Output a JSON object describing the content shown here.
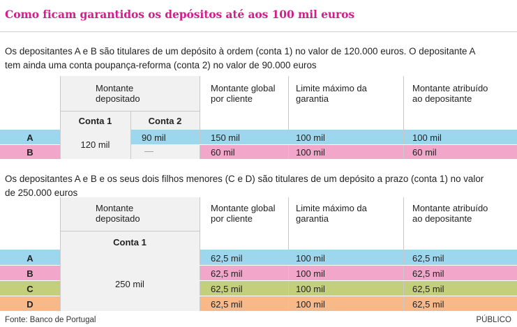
{
  "title": "Como ficam garantidos os depósitos até aos 100 mil euros",
  "scenario1": {
    "intro_line1": "Os depositantes A e B são titulares de um depósito à ordem (conta 1) no valor de 120.000 euros. O depositante A",
    "intro_line2": "tem ainda uma conta poupança-reforma (conta 2) no valor de 90.000 euros",
    "headers": {
      "montante_depositado": "Montante depositado",
      "conta1": "Conta 1",
      "conta2": "Conta 2",
      "global": "Montante global por cliente",
      "limite": "Limite máximo da garantia",
      "atribuido": "Montante atribuído ao depositante"
    },
    "conta1_shared": "120 mil",
    "rows": [
      {
        "label": "A",
        "conta2": "90 mil",
        "global": "150 mil",
        "limite": "100 mil",
        "atribuido": "100 mil",
        "color": "#9dd7ee"
      },
      {
        "label": "B",
        "conta2": "—",
        "global": "60 mil",
        "limite": "100 mil",
        "atribuido": "60 mil",
        "color": "#f2a6ca"
      }
    ]
  },
  "scenario2": {
    "intro_line1": "Os depositantes A e B e os seus dois filhos menores (C e D) são titulares de um depósito a prazo (conta 1) no valor",
    "intro_line2": "de 250.000 euros",
    "headers": {
      "montante_depositado": "Montante depositado",
      "conta1": "Conta 1",
      "global": "Montante global por cliente",
      "limite": "Limite máximo da garantia",
      "atribuido": "Montante atribuído ao depositante"
    },
    "conta1_shared": "250 mil",
    "rows": [
      {
        "label": "A",
        "global": "62,5 mil",
        "limite": "100 mil",
        "atribuido": "62,5 mil",
        "color": "#9dd7ee"
      },
      {
        "label": "B",
        "global": "62,5 mil",
        "limite": "100 mil",
        "atribuido": "62,5 mil",
        "color": "#f2a6ca"
      },
      {
        "label": "C",
        "global": "62,5 mil",
        "limite": "100 mil",
        "atribuido": "62,5 mil",
        "color": "#c3cf7a"
      },
      {
        "label": "D",
        "global": "62,5 mil",
        "limite": "100 mil",
        "atribuido": "62,5 mil",
        "color": "#f7b98a"
      }
    ]
  },
  "footer": {
    "source": "Fonte: Banco de Portugal",
    "brand": "PÚBLICO"
  }
}
